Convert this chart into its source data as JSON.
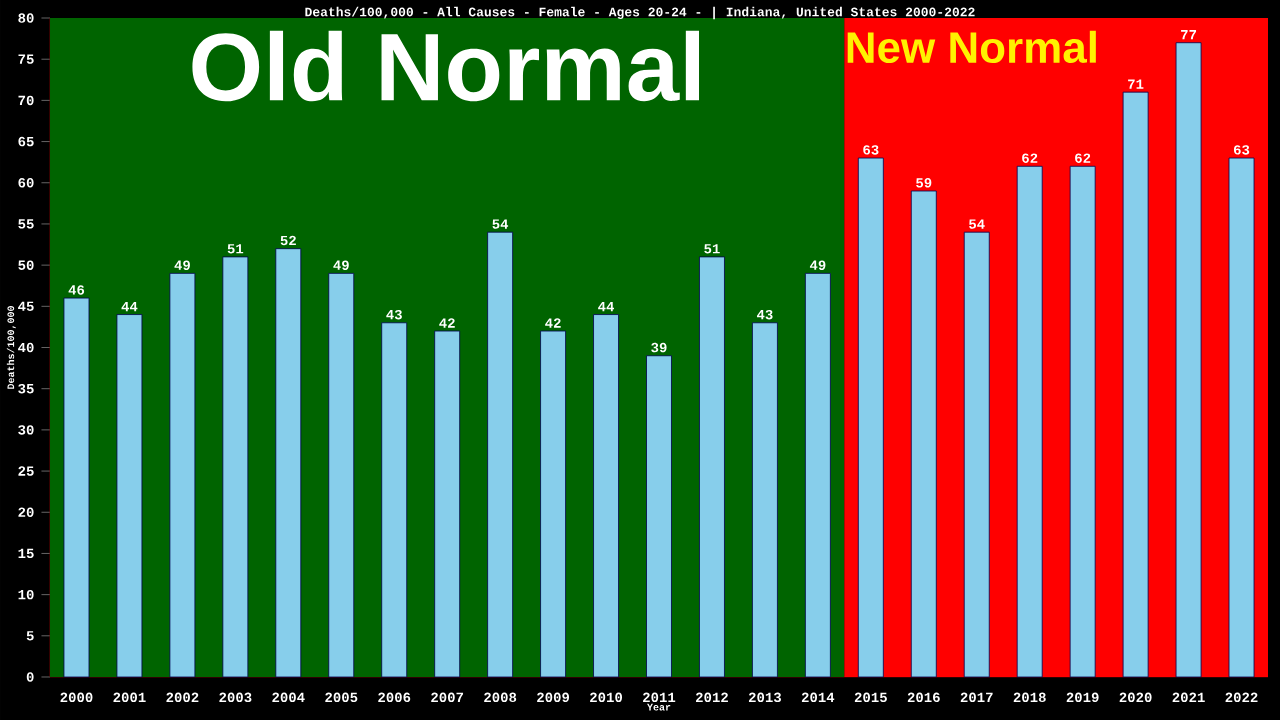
{
  "chart_data": {
    "type": "bar",
    "title": "Deaths/100,000 - All Causes - Female - Ages 20-24 -  | Indiana, United States 2000-2022",
    "xlabel": "Year",
    "ylabel": "Deaths/100,000",
    "categories": [
      "2000",
      "2001",
      "2002",
      "2003",
      "2004",
      "2005",
      "2006",
      "2007",
      "2008",
      "2009",
      "2010",
      "2011",
      "2012",
      "2013",
      "2014",
      "2015",
      "2016",
      "2017",
      "2018",
      "2019",
      "2020",
      "2021",
      "2022"
    ],
    "values": [
      46,
      44,
      49,
      51,
      52,
      49,
      43,
      42,
      54,
      42,
      44,
      39,
      51,
      43,
      49,
      63,
      59,
      54,
      62,
      62,
      71,
      77,
      63
    ],
    "color": "#87ceeb",
    "ylim": [
      0,
      80
    ],
    "yticks": [
      0,
      5,
      10,
      15,
      20,
      25,
      30,
      35,
      40,
      45,
      50,
      55,
      60,
      65,
      70,
      75,
      80
    ],
    "bands": [
      {
        "axis": "x",
        "from": "2000",
        "to": "2014",
        "label": "Old Normal",
        "color": "#006400"
      },
      {
        "axis": "x",
        "from": "2015",
        "to": "2022",
        "label": "New Normal",
        "color": "#ff0000"
      }
    ],
    "data_labels": true,
    "grid": false
  }
}
